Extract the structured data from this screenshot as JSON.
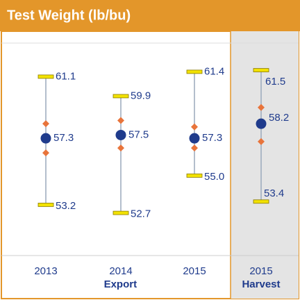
{
  "chart_data": {
    "type": "range",
    "title": "Test Weight (lb/bu)",
    "categories": [
      "2013",
      "2014",
      "2015",
      "2015"
    ],
    "groups": [
      {
        "label": "Export",
        "count": 3
      },
      {
        "label": "Harvest",
        "count": 1
      }
    ],
    "max": [
      61.1,
      59.9,
      61.4,
      61.5
    ],
    "min": [
      53.2,
      52.7,
      55.0,
      53.4
    ],
    "min_labels": [
      "53.2",
      "52.7",
      "55.0",
      "53.4"
    ],
    "mean": [
      57.3,
      57.5,
      57.3,
      58.2
    ],
    "upper": [
      58.2,
      58.4,
      58.0,
      59.2
    ],
    "lower": [
      56.4,
      56.7,
      56.7,
      57.1
    ],
    "ylim": [
      50.2,
      63.9
    ],
    "colors": {
      "header": "#e3962a",
      "bar": "#f2e200",
      "mean": "#1f3b8c",
      "diamond": "#e8743b",
      "line": "#9aa9bb",
      "text": "#1f3b8c",
      "highlight": "#e4e4e4"
    }
  }
}
